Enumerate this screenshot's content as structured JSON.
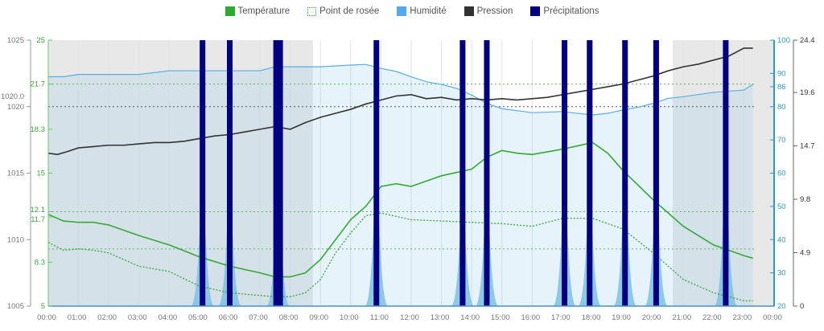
{
  "legend": [
    {
      "label": "Température",
      "color": "#2eaa2e",
      "style": "solid"
    },
    {
      "label": "Point de rosée",
      "color": "#2eaa2e",
      "style": "dotted"
    },
    {
      "label": "Humidité",
      "color": "#55aaee",
      "style": "solid"
    },
    {
      "label": "Pression",
      "color": "#333333",
      "style": "solid"
    },
    {
      "label": "Précipitations",
      "color": "#000080",
      "style": "solid"
    }
  ],
  "chart_data": {
    "type": "line",
    "title": "",
    "x_ticks": [
      "00:00",
      "01:00",
      "02:00",
      "03:00",
      "04:00",
      "05:00",
      "06:00",
      "07:00",
      "08:00",
      "09:00",
      "10:00",
      "11:00",
      "12:00",
      "13:00",
      "14:00",
      "15:00",
      "16:00",
      "17:00",
      "18:00",
      "19:00",
      "20:00",
      "21:00",
      "22:00",
      "23:00",
      "00:00"
    ],
    "x_range_hours": [
      0,
      24
    ],
    "night_shading_hours": [
      [
        0,
        8.75
      ],
      [
        20.65,
        24
      ]
    ],
    "axes": {
      "pressure": {
        "range": [
          1005,
          1025
        ],
        "ticks": [
          "1005",
          "1010",
          "1015",
          "1020",
          "1025"
        ],
        "extra_label": "1020.0",
        "color": "#777777"
      },
      "temperature": {
        "range": [
          5,
          25
        ],
        "ticks": [
          "5",
          "8.3",
          "11.7",
          "12.1",
          "15",
          "18.3",
          "21.7",
          "25"
        ],
        "color": "#3aaa3a"
      },
      "humidity": {
        "range": [
          20,
          100
        ],
        "ticks": [
          "20",
          "30",
          "40",
          "50",
          "60",
          "70",
          "80",
          "86",
          "90",
          "100"
        ],
        "color": "#2a9ac0"
      },
      "precipitation": {
        "range": [
          0,
          24.4
        ],
        "ticks": [
          "0",
          "4.9",
          "9.8",
          "14.7",
          "19.6",
          "24.4"
        ],
        "color": "#333333"
      }
    },
    "reference_lines": [
      {
        "axis": "temperature",
        "value": 21.7
      },
      {
        "axis": "pressure",
        "value": 1020
      },
      {
        "axis": "temperature",
        "value": 12.1
      },
      {
        "axis": "temperature",
        "value": 9.3
      }
    ],
    "series": [
      {
        "name": "Humidité",
        "axis": "humidity",
        "x": [
          0,
          0.5,
          1,
          3,
          4,
          5,
          6,
          7,
          7.5,
          8,
          9,
          10,
          10.5,
          11,
          11.5,
          12,
          12.5,
          13,
          13.5,
          14,
          14.5,
          15,
          16,
          17,
          18,
          18.5,
          19,
          19.5,
          20,
          20.5,
          21,
          22,
          23,
          23.3
        ],
        "y": [
          89,
          89,
          89.7,
          89.7,
          90.8,
          90.8,
          90.8,
          90.8,
          92,
          92,
          92,
          92.5,
          92.7,
          91.5,
          90.6,
          89,
          87.5,
          86.7,
          85.5,
          83.5,
          81,
          79.4,
          78.2,
          78.5,
          77.5,
          78,
          79,
          79.8,
          81,
          82.5,
          83,
          84.3,
          85,
          86.7
        ]
      },
      {
        "name": "Pression",
        "axis": "pressure",
        "x": [
          0,
          0.3,
          0.6,
          1,
          1.5,
          2,
          2.5,
          3,
          3.5,
          4,
          4.5,
          5,
          5.5,
          6,
          6.5,
          7,
          7.5,
          8,
          8.5,
          9,
          9.5,
          10,
          10.5,
          11,
          11.5,
          12,
          12.5,
          13,
          13.5,
          14,
          14.5,
          15,
          15.5,
          16,
          16.5,
          17,
          17.5,
          18,
          18.5,
          19,
          19.5,
          20,
          20.5,
          21,
          21.5,
          22,
          22.5,
          23,
          23.3
        ],
        "y": [
          1016.5,
          1016.4,
          1016.6,
          1016.9,
          1017,
          1017.1,
          1017.1,
          1017.2,
          1017.3,
          1017.3,
          1017.4,
          1017.6,
          1017.8,
          1017.9,
          1018.1,
          1018.3,
          1018.5,
          1018.3,
          1018.8,
          1019.2,
          1019.5,
          1019.8,
          1020.2,
          1020.5,
          1020.8,
          1020.9,
          1020.6,
          1020.7,
          1020.5,
          1020.6,
          1020.5,
          1020.6,
          1020.5,
          1020.6,
          1020.7,
          1020.9,
          1021.1,
          1021.3,
          1021.5,
          1021.7,
          1022,
          1022.3,
          1022.7,
          1023,
          1023.2,
          1023.5,
          1023.8,
          1024.4,
          1024.4
        ]
      },
      {
        "name": "Température",
        "axis": "temperature",
        "x": [
          0,
          0.5,
          1,
          1.5,
          2,
          3,
          4,
          5,
          6,
          7,
          7.5,
          8,
          8.5,
          9,
          9.5,
          10,
          10.5,
          11,
          11.5,
          12,
          12.5,
          13,
          14,
          14.5,
          15,
          15.5,
          16,
          17,
          18,
          18.5,
          19,
          20,
          21,
          22,
          23,
          23.3
        ],
        "y": [
          11.9,
          11.4,
          11.3,
          11.3,
          11.1,
          10.3,
          9.6,
          8.7,
          8.0,
          7.5,
          7.2,
          7.2,
          7.5,
          8.5,
          10.0,
          11.5,
          12.5,
          14.0,
          14.2,
          14.0,
          14.4,
          14.8,
          15.3,
          16.2,
          16.7,
          16.5,
          16.4,
          16.8,
          17.3,
          16.5,
          15.2,
          13.0,
          11.0,
          9.6,
          8.8,
          8.6
        ]
      },
      {
        "name": "Point de rosée",
        "axis": "temperature",
        "x": [
          0,
          0.5,
          1,
          1.5,
          2,
          3,
          4,
          5,
          6,
          7,
          7.5,
          8,
          8.5,
          9,
          9.5,
          10,
          10.5,
          11,
          12,
          13,
          14,
          15,
          16,
          17,
          18,
          19,
          20,
          21,
          22,
          23,
          23.3
        ],
        "y": [
          9.8,
          9.2,
          9.3,
          9.2,
          9.0,
          8.0,
          7.6,
          6.5,
          6.0,
          5.8,
          5.7,
          5.7,
          6.0,
          7.0,
          9.0,
          10.5,
          11.8,
          12.0,
          11.5,
          11.4,
          11.3,
          11.2,
          11.0,
          11.6,
          11.6,
          10.8,
          9.0,
          7.0,
          6.0,
          5.4,
          5.4
        ]
      },
      {
        "name": "Précipitations",
        "axis": "precipitation",
        "type": "bar",
        "x": [
          5.1,
          6.0,
          7.6,
          10.85,
          13.7,
          14.5,
          17.07,
          17.9,
          19.07,
          20.1,
          22.4
        ],
        "y": [
          24.4,
          24.4,
          24.4,
          24.4,
          24.4,
          24.4,
          24.4,
          24.4,
          24.4,
          24.4,
          24.4
        ],
        "intensity_peaks": [
          16.3,
          16,
          15.5,
          17,
          14,
          15,
          16,
          15.5,
          16.5,
          16,
          17
        ]
      }
    ]
  }
}
